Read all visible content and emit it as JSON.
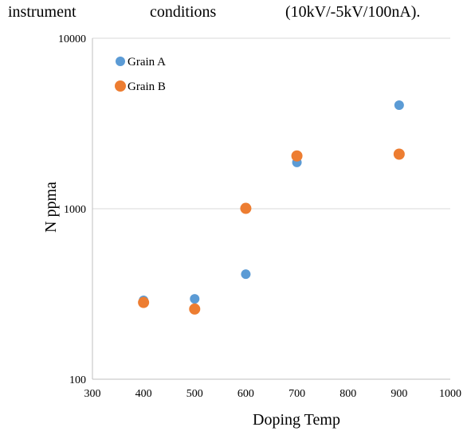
{
  "caption": {
    "words": [
      "instrument",
      "conditions",
      "(10kV/-5kV/100nA)."
    ]
  },
  "colors": {
    "grain_a": "#5B9BD5",
    "grain_b": "#ED7D31",
    "gridline": "#D9D9D9",
    "axis_text": "#000000"
  },
  "chart_data": {
    "type": "scatter",
    "title": "",
    "xlabel": "Doping Temp",
    "ylabel": "N ppma",
    "xlim": [
      300,
      1000
    ],
    "ylim": [
      100,
      10000
    ],
    "yscale": "log",
    "grid": "horizontal",
    "legend_position": "top-left",
    "x_ticks": [
      "300",
      "400",
      "500",
      "600",
      "700",
      "800",
      "900",
      "1000"
    ],
    "y_ticks": [
      "100",
      "1000",
      "10000"
    ],
    "series": [
      {
        "name": "Grain A",
        "color": "#5B9BD5",
        "points": [
          [
            400,
            290
          ],
          [
            500,
            296
          ],
          [
            600,
            413
          ],
          [
            700,
            1870
          ],
          [
            900,
            4050
          ]
        ]
      },
      {
        "name": "Grain B",
        "color": "#ED7D31",
        "points": [
          [
            400,
            282
          ],
          [
            500,
            258
          ],
          [
            600,
            1005
          ],
          [
            700,
            2040
          ],
          [
            900,
            2090
          ]
        ]
      }
    ]
  }
}
